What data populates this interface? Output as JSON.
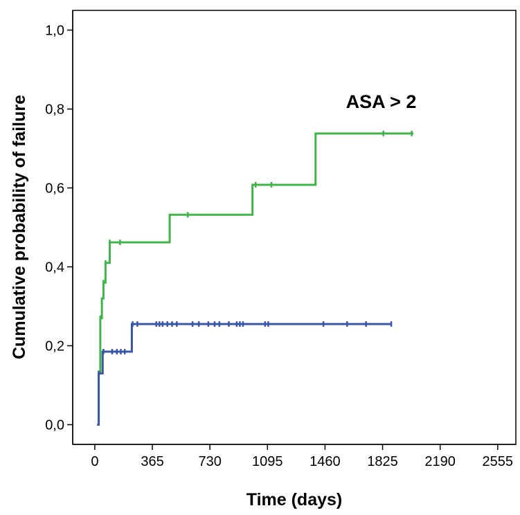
{
  "chart_data": {
    "type": "line",
    "title": "",
    "xlabel": "Time (days)",
    "ylabel": "Cumulative probability of failure",
    "xlim": [
      -140,
      2670
    ],
    "ylim": [
      -0.05,
      1.05
    ],
    "x_ticks": [
      0,
      365,
      730,
      1095,
      1460,
      1825,
      2190,
      2555
    ],
    "x_tick_labels": [
      "0",
      "365",
      "730",
      "1095",
      "1460",
      "1825",
      "2190",
      "2555"
    ],
    "y_ticks": [
      0.0,
      0.2,
      0.4,
      0.6,
      0.8,
      1.0
    ],
    "y_tick_labels": [
      "0,0",
      "0,2",
      "0,4",
      "0,6",
      "0,8",
      "1,0"
    ],
    "grid": false,
    "annotations": [
      {
        "text": "ASA > 2",
        "x": 1825,
        "y": 0.82
      }
    ],
    "series": [
      {
        "color": "#3fb548",
        "step_points": [
          [
            15,
            0.0
          ],
          [
            25,
            0.13
          ],
          [
            35,
            0.27
          ],
          [
            45,
            0.32
          ],
          [
            55,
            0.36
          ],
          [
            68,
            0.41
          ],
          [
            95,
            0.462
          ],
          [
            475,
            0.532
          ],
          [
            1000,
            0.608
          ],
          [
            1400,
            0.738
          ],
          [
            2020,
            0.738
          ]
        ],
        "censored": [
          [
            25,
            0.13
          ],
          [
            35,
            0.27
          ],
          [
            55,
            0.36
          ],
          [
            68,
            0.41
          ],
          [
            95,
            0.462
          ],
          [
            160,
            0.462
          ],
          [
            590,
            0.532
          ],
          [
            1020,
            0.608
          ],
          [
            1120,
            0.608
          ],
          [
            1830,
            0.738
          ],
          [
            2010,
            0.738
          ]
        ]
      },
      {
        "color": "#3c56a6",
        "step_points": [
          [
            15,
            0.0
          ],
          [
            25,
            0.13
          ],
          [
            50,
            0.185
          ],
          [
            235,
            0.255
          ],
          [
            1880,
            0.255
          ]
        ],
        "censored": [
          [
            25,
            0.13
          ],
          [
            55,
            0.185
          ],
          [
            110,
            0.185
          ],
          [
            140,
            0.185
          ],
          [
            165,
            0.185
          ],
          [
            190,
            0.185
          ],
          [
            240,
            0.255
          ],
          [
            270,
            0.255
          ],
          [
            390,
            0.255
          ],
          [
            410,
            0.255
          ],
          [
            430,
            0.255
          ],
          [
            460,
            0.255
          ],
          [
            490,
            0.255
          ],
          [
            520,
            0.255
          ],
          [
            620,
            0.255
          ],
          [
            660,
            0.255
          ],
          [
            720,
            0.255
          ],
          [
            760,
            0.255
          ],
          [
            790,
            0.255
          ],
          [
            850,
            0.255
          ],
          [
            900,
            0.255
          ],
          [
            920,
            0.255
          ],
          [
            940,
            0.255
          ],
          [
            1080,
            0.255
          ],
          [
            1100,
            0.255
          ],
          [
            1450,
            0.255
          ],
          [
            1600,
            0.255
          ],
          [
            1720,
            0.255
          ],
          [
            1880,
            0.255
          ]
        ]
      }
    ]
  }
}
